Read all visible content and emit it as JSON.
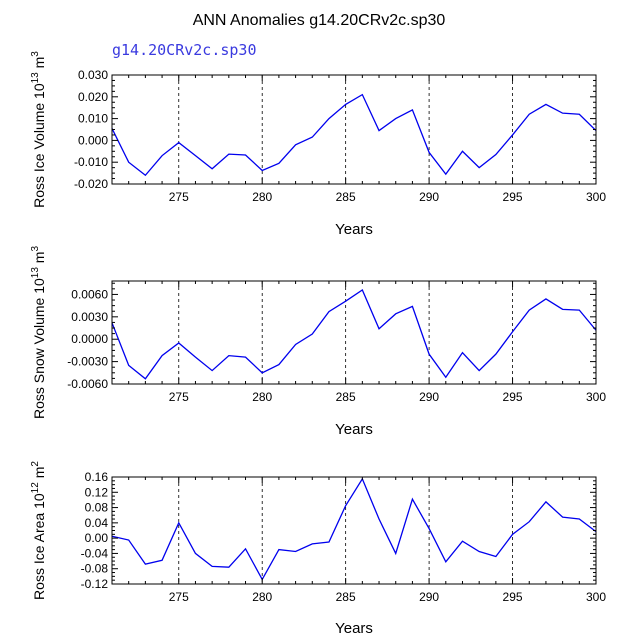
{
  "title": "ANN Anomalies g14.20CRv2c.sp30",
  "subtitle": "g14.20CRv2c.sp30",
  "colors": {
    "line": "#0000ee",
    "subtitle": "#3a3adf",
    "axis": "#000000"
  },
  "chart_data": [
    {
      "type": "line",
      "ylabel_parts": {
        "main": "Ross Ice Volume 10",
        "exp": "13",
        "unit": " m",
        "unit_exp": "3"
      },
      "xlabel": "Years",
      "xlim": [
        271,
        300
      ],
      "ylim": [
        -0.02,
        0.03
      ],
      "xticks": [
        275,
        280,
        285,
        290,
        295,
        300
      ],
      "xtick_labels": [
        "275",
        "280",
        "285",
        "290",
        "295",
        "300"
      ],
      "yticks": [
        -0.02,
        -0.01,
        0.0,
        0.01,
        0.02,
        0.03
      ],
      "ytick_labels": [
        "-0.020",
        "-0.010",
        "0.000",
        "0.010",
        "0.020",
        "0.030"
      ],
      "grid": "vertical-dashed",
      "x": [
        271,
        272,
        273,
        274,
        275,
        276,
        277,
        278,
        279,
        280,
        281,
        282,
        283,
        284,
        285,
        286,
        287,
        288,
        289,
        290,
        291,
        292,
        293,
        294,
        295,
        296,
        297,
        298,
        299,
        300
      ],
      "series": [
        {
          "values": [
            0.0055,
            -0.01,
            -0.016,
            -0.007,
            -0.001,
            -0.007,
            -0.013,
            -0.0063,
            -0.0067,
            -0.0138,
            -0.0105,
            -0.002,
            0.0015,
            0.01,
            0.0165,
            0.021,
            0.0045,
            0.01,
            0.014,
            -0.0055,
            -0.0155,
            -0.005,
            -0.0125,
            -0.0065,
            0.0025,
            0.012,
            0.0165,
            0.0125,
            0.012,
            0.0045
          ]
        }
      ]
    },
    {
      "type": "line",
      "ylabel_parts": {
        "main": "Ross Snow Volume 10",
        "exp": "13",
        "unit": " m",
        "unit_exp": "3"
      },
      "xlabel": "Years",
      "xlim": [
        271,
        300
      ],
      "ylim": [
        -0.006,
        0.0078
      ],
      "xticks": [
        275,
        280,
        285,
        290,
        295,
        300
      ],
      "xtick_labels": [
        "275",
        "280",
        "285",
        "290",
        "295",
        "300"
      ],
      "yticks": [
        -0.006,
        -0.003,
        0.0,
        0.003,
        0.006
      ],
      "ytick_labels": [
        "-0.0060",
        "-0.0030",
        "0.0000",
        "0.0030",
        "0.0060"
      ],
      "grid": "vertical-dashed",
      "x": [
        271,
        272,
        273,
        274,
        275,
        276,
        277,
        278,
        279,
        280,
        281,
        282,
        283,
        284,
        285,
        286,
        287,
        288,
        289,
        290,
        291,
        292,
        293,
        294,
        295,
        296,
        297,
        298,
        299,
        300
      ],
      "series": [
        {
          "values": [
            0.0022,
            -0.0035,
            -0.0053,
            -0.0022,
            -0.0005,
            -0.0024,
            -0.0042,
            -0.0022,
            -0.0024,
            -0.0045,
            -0.0034,
            -0.0007,
            0.0007,
            0.0037,
            0.0051,
            0.0066,
            0.0014,
            0.0034,
            0.0044,
            -0.002,
            -0.0051,
            -0.0018,
            -0.0042,
            -0.002,
            0.001,
            0.0039,
            0.0054,
            0.004,
            0.0039,
            0.0012
          ]
        }
      ]
    },
    {
      "type": "line",
      "ylabel_parts": {
        "main": "Ross Ice Area 10",
        "exp": "12",
        "unit": " m",
        "unit_exp": "2"
      },
      "xlabel": "Years",
      "xlim": [
        271,
        300
      ],
      "ylim": [
        -0.12,
        0.16
      ],
      "xticks": [
        275,
        280,
        285,
        290,
        295,
        300
      ],
      "xtick_labels": [
        "275",
        "280",
        "285",
        "290",
        "295",
        "300"
      ],
      "yticks": [
        -0.12,
        -0.08,
        -0.04,
        0.0,
        0.04,
        0.08,
        0.12,
        0.16
      ],
      "ytick_labels": [
        "-0.12",
        "-0.08",
        "-0.04",
        "0.00",
        "0.04",
        "0.08",
        "0.12",
        "0.16"
      ],
      "grid": "vertical-dashed",
      "x": [
        271,
        272,
        273,
        274,
        275,
        276,
        277,
        278,
        279,
        280,
        281,
        282,
        283,
        284,
        285,
        286,
        287,
        288,
        289,
        290,
        291,
        292,
        293,
        294,
        295,
        296,
        297,
        298,
        299,
        300
      ],
      "series": [
        {
          "values": [
            0.005,
            -0.005,
            -0.068,
            -0.058,
            0.04,
            -0.04,
            -0.074,
            -0.076,
            -0.028,
            -0.108,
            -0.03,
            -0.035,
            -0.015,
            -0.01,
            0.085,
            0.155,
            0.05,
            -0.04,
            0.102,
            0.025,
            -0.062,
            -0.008,
            -0.035,
            -0.048,
            0.01,
            0.043,
            0.095,
            0.055,
            0.05,
            0.017
          ]
        }
      ]
    }
  ]
}
